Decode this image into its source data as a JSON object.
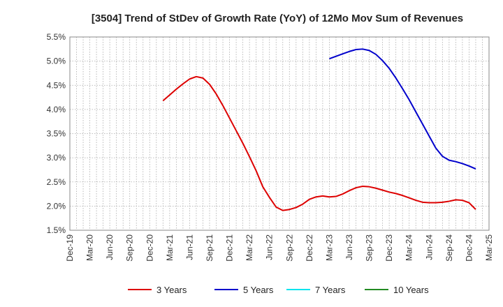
{
  "chart_data": {
    "type": "line",
    "title": "[3504]  Trend of StDev of Growth Rate (YoY) of 12Mo Mov Sum of Revenues",
    "xlabel": "",
    "ylabel": "",
    "ylim": [
      1.5,
      5.5
    ],
    "y_ticks": [
      "1.5%",
      "2.0%",
      "2.5%",
      "3.0%",
      "3.5%",
      "4.0%",
      "4.5%",
      "5.0%",
      "5.5%"
    ],
    "y_tick_values": [
      1.5,
      2.0,
      2.5,
      3.0,
      3.5,
      4.0,
      4.5,
      5.0,
      5.5
    ],
    "x_ticks": [
      "Dec-19",
      "Mar-20",
      "Jun-20",
      "Sep-20",
      "Dec-20",
      "Mar-21",
      "Jun-21",
      "Sep-21",
      "Dec-21",
      "Mar-22",
      "Jun-22",
      "Sep-22",
      "Dec-22",
      "Mar-23",
      "Jun-23",
      "Sep-23",
      "Dec-23",
      "Mar-24",
      "Jun-24",
      "Sep-24",
      "Dec-24",
      "Mar-25"
    ],
    "x_start": "Dec-19",
    "months_total": 63,
    "grid": true,
    "legend_position": "bottom",
    "series": [
      {
        "name": "3 Years",
        "color": "#dd0000",
        "start_month": 14,
        "values": [
          4.18,
          4.3,
          4.42,
          4.53,
          4.63,
          4.68,
          4.65,
          4.52,
          4.32,
          4.08,
          3.82,
          3.56,
          3.3,
          3.02,
          2.73,
          2.4,
          2.18,
          1.98,
          1.91,
          1.93,
          1.97,
          2.04,
          2.14,
          2.19,
          2.21,
          2.19,
          2.2,
          2.25,
          2.32,
          2.38,
          2.41,
          2.4,
          2.37,
          2.33,
          2.29,
          2.26,
          2.22,
          2.17,
          2.12,
          2.08,
          2.07,
          2.07,
          2.08,
          2.1,
          2.13,
          2.12,
          2.07,
          1.93
        ]
      },
      {
        "name": "5 Years",
        "color": "#0000cc",
        "start_month": 39,
        "values": [
          5.05,
          5.1,
          5.15,
          5.2,
          5.24,
          5.25,
          5.22,
          5.14,
          5.01,
          4.85,
          4.65,
          4.43,
          4.2,
          3.95,
          3.7,
          3.45,
          3.2,
          3.03,
          2.95,
          2.92,
          2.88,
          2.83,
          2.77
        ]
      },
      {
        "name": "7 Years",
        "color": "#00e5ee",
        "start_month": 0,
        "values": []
      },
      {
        "name": "10 Years",
        "color": "#228b22",
        "start_month": 0,
        "values": []
      }
    ]
  }
}
